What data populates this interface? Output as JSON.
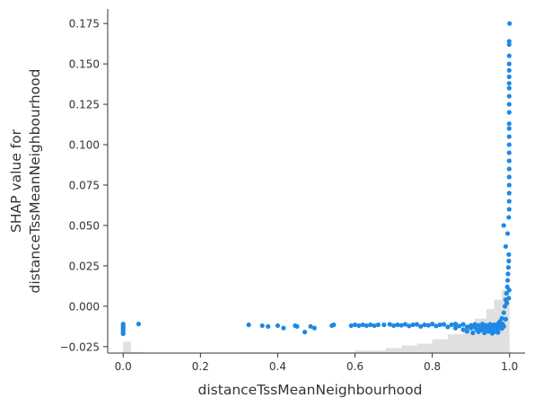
{
  "chart_data": {
    "type": "scatter",
    "xlabel": "distanceTssMeanNeighbourhood",
    "ylabel_lines": [
      "SHAP value for",
      "distanceTssMeanNeighbourhood"
    ],
    "xlim": [
      -0.04,
      1.04
    ],
    "ylim": [
      -0.029,
      0.184
    ],
    "x_ticks": [
      0.0,
      0.2,
      0.4,
      0.6,
      0.8,
      1.0
    ],
    "x_tick_labels": [
      "0.0",
      "0.2",
      "0.4",
      "0.6",
      "0.8",
      "1.0"
    ],
    "y_ticks": [
      -0.025,
      0.0,
      0.025,
      0.05,
      0.075,
      0.1,
      0.125,
      0.15,
      0.175
    ],
    "y_tick_labels": [
      "−0.025",
      "0.000",
      "0.025",
      "0.050",
      "0.075",
      "0.100",
      "0.125",
      "0.150",
      "0.175"
    ],
    "grid": false,
    "point_color": "#1E88E5",
    "histogram_color": "#cccccc",
    "histogram": {
      "note_units": "bar heights as fraction of the tallest bar",
      "bins": [
        {
          "x0": 0.0,
          "x1": 0.02,
          "h": 0.18
        },
        {
          "x0": 0.02,
          "x1": 0.05,
          "h": 0.02
        },
        {
          "x0": 0.3,
          "x1": 0.6,
          "h": 0.01
        },
        {
          "x0": 0.6,
          "x1": 0.68,
          "h": 0.04
        },
        {
          "x0": 0.68,
          "x1": 0.72,
          "h": 0.08
        },
        {
          "x0": 0.72,
          "x1": 0.76,
          "h": 0.12
        },
        {
          "x0": 0.76,
          "x1": 0.8,
          "h": 0.15
        },
        {
          "x0": 0.8,
          "x1": 0.84,
          "h": 0.22
        },
        {
          "x0": 0.84,
          "x1": 0.88,
          "h": 0.3
        },
        {
          "x0": 0.88,
          "x1": 0.91,
          "h": 0.4
        },
        {
          "x0": 0.91,
          "x1": 0.94,
          "h": 0.55
        },
        {
          "x0": 0.94,
          "x1": 0.96,
          "h": 0.7
        },
        {
          "x0": 0.96,
          "x1": 0.98,
          "h": 0.85
        },
        {
          "x0": 0.98,
          "x1": 1.0,
          "h": 1.0
        }
      ]
    },
    "points": [
      {
        "x": 0.0,
        "y": -0.011
      },
      {
        "x": 0.0,
        "y": -0.012
      },
      {
        "x": 0.0,
        "y": -0.013
      },
      {
        "x": 0.0,
        "y": -0.014
      },
      {
        "x": 0.0,
        "y": -0.015
      },
      {
        "x": 0.0,
        "y": -0.016
      },
      {
        "x": 0.0,
        "y": -0.017
      },
      {
        "x": 0.04,
        "y": -0.011
      },
      {
        "x": 0.325,
        "y": -0.0115
      },
      {
        "x": 0.36,
        "y": -0.012
      },
      {
        "x": 0.375,
        "y": -0.0125
      },
      {
        "x": 0.4,
        "y": -0.012
      },
      {
        "x": 0.415,
        "y": -0.0135
      },
      {
        "x": 0.445,
        "y": -0.012
      },
      {
        "x": 0.45,
        "y": -0.0125
      },
      {
        "x": 0.47,
        "y": -0.016
      },
      {
        "x": 0.485,
        "y": -0.0125
      },
      {
        "x": 0.495,
        "y": -0.0135
      },
      {
        "x": 0.54,
        "y": -0.012
      },
      {
        "x": 0.545,
        "y": -0.0115
      },
      {
        "x": 0.59,
        "y": -0.012
      },
      {
        "x": 0.6,
        "y": -0.0115
      },
      {
        "x": 0.61,
        "y": -0.012
      },
      {
        "x": 0.62,
        "y": -0.0115
      },
      {
        "x": 0.63,
        "y": -0.012
      },
      {
        "x": 0.64,
        "y": -0.0115
      },
      {
        "x": 0.65,
        "y": -0.012
      },
      {
        "x": 0.66,
        "y": -0.0115
      },
      {
        "x": 0.675,
        "y": -0.0115
      },
      {
        "x": 0.69,
        "y": -0.0112
      },
      {
        "x": 0.7,
        "y": -0.012
      },
      {
        "x": 0.71,
        "y": -0.0115
      },
      {
        "x": 0.72,
        "y": -0.0118
      },
      {
        "x": 0.73,
        "y": -0.0112
      },
      {
        "x": 0.74,
        "y": -0.0122
      },
      {
        "x": 0.75,
        "y": -0.0115
      },
      {
        "x": 0.76,
        "y": -0.0112
      },
      {
        "x": 0.77,
        "y": -0.0125
      },
      {
        "x": 0.78,
        "y": -0.0115
      },
      {
        "x": 0.79,
        "y": -0.0118
      },
      {
        "x": 0.8,
        "y": -0.011
      },
      {
        "x": 0.81,
        "y": -0.0122
      },
      {
        "x": 0.82,
        "y": -0.0115
      },
      {
        "x": 0.83,
        "y": -0.0112
      },
      {
        "x": 0.84,
        "y": -0.0128
      },
      {
        "x": 0.85,
        "y": -0.0115
      },
      {
        "x": 0.86,
        "y": -0.0135
      },
      {
        "x": 0.86,
        "y": -0.011
      },
      {
        "x": 0.87,
        "y": -0.0122
      },
      {
        "x": 0.88,
        "y": -0.0145
      },
      {
        "x": 0.88,
        "y": -0.0112
      },
      {
        "x": 0.89,
        "y": -0.0128
      },
      {
        "x": 0.89,
        "y": -0.0155
      },
      {
        "x": 0.9,
        "y": -0.0118
      },
      {
        "x": 0.9,
        "y": -0.0135
      },
      {
        "x": 0.905,
        "y": -0.0165
      },
      {
        "x": 0.91,
        "y": -0.0112
      },
      {
        "x": 0.91,
        "y": -0.0128
      },
      {
        "x": 0.915,
        "y": -0.0145
      },
      {
        "x": 0.92,
        "y": -0.0118
      },
      {
        "x": 0.92,
        "y": -0.0158
      },
      {
        "x": 0.925,
        "y": -0.0135
      },
      {
        "x": 0.93,
        "y": -0.011
      },
      {
        "x": 0.93,
        "y": -0.0125
      },
      {
        "x": 0.93,
        "y": -0.0148
      },
      {
        "x": 0.935,
        "y": -0.0165
      },
      {
        "x": 0.94,
        "y": -0.0118
      },
      {
        "x": 0.94,
        "y": -0.0138
      },
      {
        "x": 0.945,
        "y": -0.0155
      },
      {
        "x": 0.95,
        "y": -0.0112
      },
      {
        "x": 0.95,
        "y": -0.0128
      },
      {
        "x": 0.95,
        "y": -0.0145
      },
      {
        "x": 0.955,
        "y": -0.0168
      },
      {
        "x": 0.96,
        "y": -0.0115
      },
      {
        "x": 0.96,
        "y": -0.0135
      },
      {
        "x": 0.96,
        "y": -0.0158
      },
      {
        "x": 0.965,
        "y": -0.0125
      },
      {
        "x": 0.97,
        "y": -0.0108
      },
      {
        "x": 0.97,
        "y": -0.0142
      },
      {
        "x": 0.97,
        "y": -0.0162
      },
      {
        "x": 0.975,
        "y": -0.012
      },
      {
        "x": 0.975,
        "y": -0.0095
      },
      {
        "x": 0.98,
        "y": -0.0138
      },
      {
        "x": 0.98,
        "y": -0.0075
      },
      {
        "x": 0.982,
        "y": -0.011
      },
      {
        "x": 0.985,
        "y": -0.004
      },
      {
        "x": 0.985,
        "y": -0.0125
      },
      {
        "x": 0.988,
        "y": 0.0
      },
      {
        "x": 0.99,
        "y": -0.008
      },
      {
        "x": 0.99,
        "y": 0.004
      },
      {
        "x": 0.992,
        "y": 0.008
      },
      {
        "x": 0.993,
        "y": 0.002
      },
      {
        "x": 0.994,
        "y": 0.012
      },
      {
        "x": 0.995,
        "y": 0.016
      },
      {
        "x": 0.996,
        "y": 0.02
      },
      {
        "x": 0.997,
        "y": 0.024
      },
      {
        "x": 0.998,
        "y": 0.028
      },
      {
        "x": 0.998,
        "y": 0.032
      },
      {
        "x": 0.998,
        "y": 0.005
      },
      {
        "x": 0.999,
        "y": 0.01
      },
      {
        "x": 0.99,
        "y": 0.037
      },
      {
        "x": 0.985,
        "y": 0.05
      },
      {
        "x": 0.995,
        "y": 0.045
      },
      {
        "x": 0.998,
        "y": 0.055
      },
      {
        "x": 0.999,
        "y": 0.06
      },
      {
        "x": 0.999,
        "y": 0.065
      },
      {
        "x": 0.999,
        "y": 0.07
      },
      {
        "x": 0.999,
        "y": 0.075
      },
      {
        "x": 0.999,
        "y": 0.08
      },
      {
        "x": 0.999,
        "y": 0.085
      },
      {
        "x": 0.999,
        "y": 0.09
      },
      {
        "x": 0.999,
        "y": 0.095
      },
      {
        "x": 0.999,
        "y": 0.1
      },
      {
        "x": 0.999,
        "y": 0.105
      },
      {
        "x": 0.999,
        "y": 0.11
      },
      {
        "x": 0.999,
        "y": 0.113
      },
      {
        "x": 0.999,
        "y": 0.12
      },
      {
        "x": 0.999,
        "y": 0.125
      },
      {
        "x": 0.999,
        "y": 0.13
      },
      {
        "x": 0.999,
        "y": 0.135
      },
      {
        "x": 0.999,
        "y": 0.138
      },
      {
        "x": 0.999,
        "y": 0.142
      },
      {
        "x": 0.999,
        "y": 0.146
      },
      {
        "x": 0.999,
        "y": 0.15
      },
      {
        "x": 0.999,
        "y": 0.155
      },
      {
        "x": 0.999,
        "y": 0.162
      },
      {
        "x": 0.999,
        "y": 0.164
      },
      {
        "x": 1.0,
        "y": 0.175
      }
    ]
  }
}
